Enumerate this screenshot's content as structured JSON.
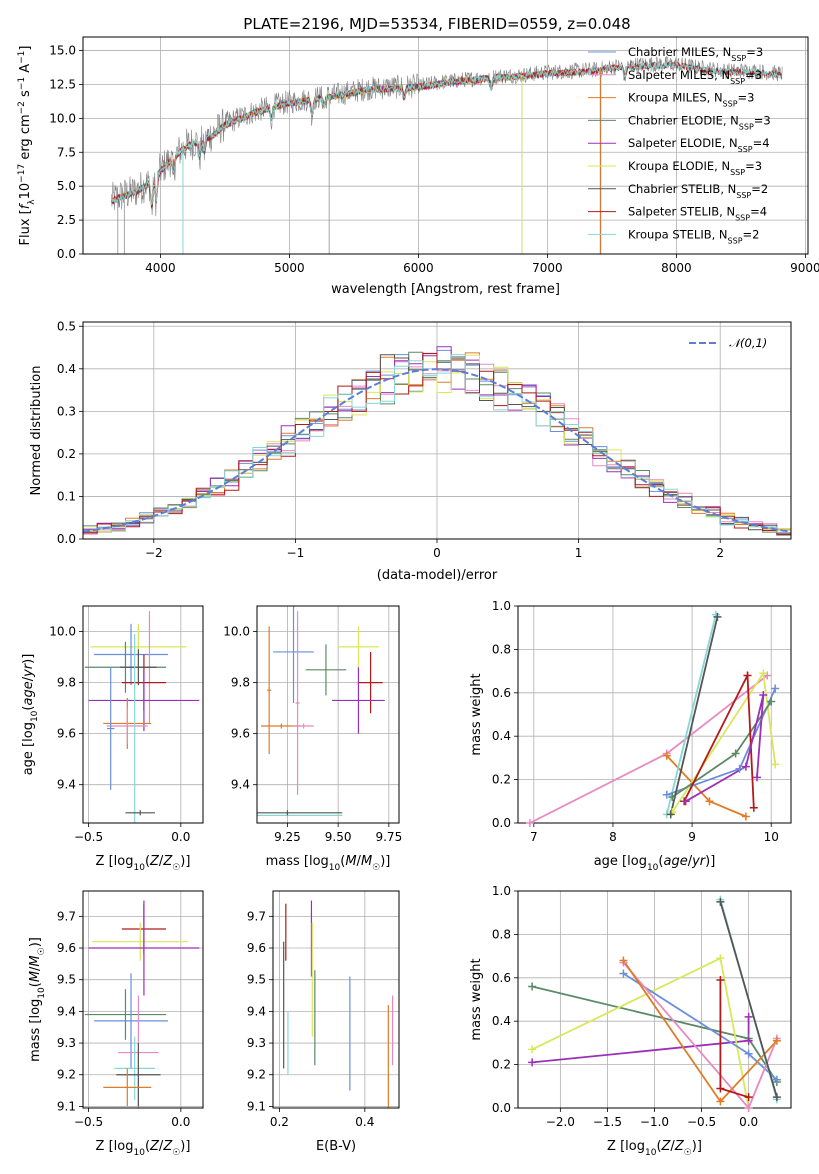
{
  "page_title": "PLATE=2196, MJD=53534, FIBERID=0559, z=0.048",
  "colors": {
    "Chabrier MILES": "#6a8fd8",
    "Salpeter MILES": "#e78ac3",
    "Kroupa MILES": "#e07b28",
    "Chabrier ELODIE": "#5c8a66",
    "Salpeter ELODIE": "#9b30b8",
    "Kroupa ELODIE": "#d8e85a",
    "Chabrier STELIB": "#555555",
    "Salpeter STELIB": "#b21a1a",
    "Kroupa STELIB": "#86d8d6",
    "data": "#808080",
    "normal": "#5b7fd6"
  },
  "chart_data": [
    {
      "id": "spectrum",
      "type": "line",
      "title": "PLATE=2196, MJD=53534, FIBERID=0559, z=0.048",
      "xlabel": "wavelength [Angstrom, rest frame]",
      "ylabel": "Flux [f_λ 10^-17 erg cm^-2 s^-1 A^-1]",
      "xlim": [
        3400,
        9020
      ],
      "ylim": [
        0,
        16
      ],
      "xticks": [
        4000,
        5000,
        6000,
        7000,
        8000,
        9000
      ],
      "yticks": [
        0.0,
        2.5,
        5.0,
        7.5,
        10.0,
        12.5,
        15.0
      ],
      "legend_position": "right",
      "legend": [
        {
          "label": "Chabrier MILES, N_SSP=3",
          "base": "Chabrier MILES, N",
          "sub": "SSP",
          "tail": "=3"
        },
        {
          "label": "Salpeter MILES, N_SSP=3",
          "base": "Salpeter MILES, N",
          "sub": "SSP",
          "tail": "=3"
        },
        {
          "label": "Kroupa MILES, N_SSP=3",
          "base": "Kroupa MILES, N",
          "sub": "SSP",
          "tail": "=3"
        },
        {
          "label": "Chabrier ELODIE, N_SSP=3",
          "base": "Chabrier ELODIE, N",
          "sub": "SSP",
          "tail": "=3"
        },
        {
          "label": "Salpeter ELODIE, N_SSP=4",
          "base": "Salpeter ELODIE, N",
          "sub": "SSP",
          "tail": "=4"
        },
        {
          "label": "Kroupa ELODIE, N_SSP=3",
          "base": "Kroupa ELODIE, N",
          "sub": "SSP",
          "tail": "=3"
        },
        {
          "label": "Chabrier STELIB, N_SSP=2",
          "base": "Chabrier STELIB, N",
          "sub": "SSP",
          "tail": "=2"
        },
        {
          "label": "Salpeter STELIB, N_SSP=4",
          "base": "Salpeter STELIB, N",
          "sub": "SSP",
          "tail": "=4"
        },
        {
          "label": "Kroupa STELIB, N_SSP=2",
          "base": "Kroupa STELIB, N",
          "sub": "SSP",
          "tail": "=2"
        }
      ],
      "continuum": {
        "x": [
          3620,
          3700,
          3800,
          3900,
          4000,
          4100,
          4200,
          4300,
          4400,
          4500,
          4600,
          4700,
          4800,
          4900,
          5000,
          5200,
          5400,
          5600,
          5800,
          6000,
          6200,
          6400,
          6600,
          6800,
          7000,
          7200,
          7400,
          7500,
          7600,
          7800,
          8000,
          8200,
          8400,
          8600,
          8800
        ],
        "y": [
          4.0,
          4.3,
          4.6,
          5.2,
          6.2,
          7.2,
          8.0,
          8.4,
          8.8,
          9.6,
          10.0,
          10.4,
          10.7,
          11.0,
          11.2,
          11.5,
          11.8,
          12.2,
          12.3,
          12.4,
          12.7,
          12.9,
          13.1,
          13.2,
          13.4,
          13.5,
          13.6,
          13.8,
          13.9,
          14.0,
          14.0,
          13.7,
          13.5,
          13.5,
          13.3
        ]
      }
    },
    {
      "id": "residuals",
      "type": "histogram",
      "xlabel": "(data-model)/error",
      "ylabel": "Normed distribution",
      "xlim": [
        -2.5,
        2.5
      ],
      "ylim": [
        0,
        0.51
      ],
      "xticks": [
        -2,
        -1,
        0,
        1,
        2
      ],
      "yticks": [
        0.0,
        0.1,
        0.2,
        0.3,
        0.4,
        0.5
      ],
      "bin_width": 0.1,
      "legend_position": "top-right",
      "legend": [
        {
          "label": "𝒩(0,1)"
        }
      ],
      "normal_curve": {
        "mean": 0,
        "sigma": 1
      },
      "series_order": [
        "Chabrier MILES",
        "Salpeter MILES",
        "Kroupa MILES",
        "Chabrier ELODIE",
        "Salpeter ELODIE",
        "Kroupa ELODIE",
        "Chabrier STELIB",
        "Salpeter STELIB",
        "Kroupa STELIB"
      ]
    },
    {
      "id": "age-vs-Z",
      "type": "errorbar",
      "xlabel": "Z [log10(Z/Z☉)]",
      "ylabel": "age [log10(age/yr)]",
      "xlim": [
        -0.53,
        0.12
      ],
      "ylim": [
        9.25,
        10.1
      ],
      "xticks": [
        -0.5,
        0.0
      ],
      "yticks": [
        9.4,
        9.6,
        9.8,
        10.0
      ],
      "points": [
        {
          "series": "Kroupa ELODIE",
          "x": -0.23,
          "y": 9.94,
          "xerr": 0.26,
          "yerr": 0.09
        },
        {
          "series": "Chabrier MILES",
          "x": -0.27,
          "y": 9.91,
          "xerr": 0.2,
          "yerr": 0.12
        },
        {
          "series": "Salpeter MILES",
          "x": -0.17,
          "y": 9.86,
          "xerr": 0.03,
          "yerr": 0.22
        },
        {
          "series": "Chabrier ELODIE",
          "x": -0.3,
          "y": 9.86,
          "xerr": 0.22,
          "yerr": 0.1
        },
        {
          "series": "Salpeter STELIB",
          "x": -0.2,
          "y": 9.8,
          "xerr": 0.12,
          "yerr": 0.11
        },
        {
          "series": "Chabrier STELIB",
          "x": -0.23,
          "y": 9.86,
          "xerr": 0.1,
          "yerr": 0.07
        },
        {
          "series": "Salpeter ELODIE",
          "x": -0.2,
          "y": 9.73,
          "xerr": 0.3,
          "yerr": 0.12
        },
        {
          "series": "Kroupa MILES",
          "x": -0.29,
          "y": 9.64,
          "xerr": 0.13,
          "yerr": 0.1
        },
        {
          "series": "Salpeter MILES",
          "x": -0.29,
          "y": 9.63,
          "xerr": 0.11,
          "yerr": 0.07
        },
        {
          "series": "Chabrier MILES",
          "x": -0.38,
          "y": 9.62,
          "xerr": 0.02,
          "yerr": 0.24
        },
        {
          "series": "Kroupa STELIB",
          "x": -0.25,
          "y": 9.29,
          "xerr": 0.01,
          "yerr": 0.7
        },
        {
          "series": "Chabrier STELIB",
          "x": -0.22,
          "y": 9.29,
          "xerr": 0.08,
          "yerr": 0.01
        }
      ]
    },
    {
      "id": "age-vs-mass",
      "type": "errorbar",
      "xlabel": "mass [log10(M/M☉)]",
      "ylabel": "",
      "xlim": [
        9.1,
        9.8
      ],
      "ylim": [
        9.25,
        10.1
      ],
      "xticks": [
        9.25,
        9.5,
        9.75
      ],
      "yticks": [
        9.4,
        9.6,
        9.8,
        10.0
      ],
      "points": [
        {
          "series": "Kroupa MILES",
          "x": 9.16,
          "y": 9.77,
          "xerr": 0.01,
          "yerr": 0.25
        },
        {
          "series": "Chabrier MILES",
          "x": 9.28,
          "y": 9.92,
          "xerr": 0.1,
          "yerr": 0.2
        },
        {
          "series": "Salpeter MILES",
          "x": 9.3,
          "y": 9.72,
          "xerr": 0.01,
          "yerr": 0.36
        },
        {
          "series": "Chabrier ELODIE",
          "x": 9.44,
          "y": 9.85,
          "xerr": 0.1,
          "yerr": 0.1
        },
        {
          "series": "Kroupa ELODIE",
          "x": 9.6,
          "y": 9.94,
          "xerr": 0.1,
          "yerr": 0.08
        },
        {
          "series": "Salpeter STELIB",
          "x": 9.66,
          "y": 9.8,
          "xerr": 0.06,
          "yerr": 0.12
        },
        {
          "series": "Salpeter ELODIE",
          "x": 9.6,
          "y": 9.73,
          "xerr": 0.13,
          "yerr": 0.13
        },
        {
          "series": "Kroupa MILES",
          "x": 9.22,
          "y": 9.63,
          "xerr": 0.1,
          "yerr": 0.01
        },
        {
          "series": "Salpeter MILES",
          "x": 9.33,
          "y": 9.63,
          "xerr": 0.05,
          "yerr": 0.01
        },
        {
          "series": "Kroupa STELIB",
          "x": 9.25,
          "y": 9.28,
          "xerr": 0.27,
          "yerr": 0.01
        },
        {
          "series": "Chabrier STELIB",
          "x": 9.25,
          "y": 9.29,
          "xerr": 0.27,
          "yerr": 0.01
        }
      ]
    },
    {
      "id": "mass-weight-vs-age",
      "type": "line",
      "xlabel": "age [log10(age/yr)]",
      "ylabel": "mass weight",
      "xlim": [
        6.8,
        10.25
      ],
      "ylim": [
        0,
        1.0
      ],
      "xticks": [
        7,
        8,
        9,
        10
      ],
      "yticks": [
        0.0,
        0.2,
        0.4,
        0.6,
        0.8,
        1.0
      ],
      "series": [
        {
          "name": "Salpeter MILES",
          "x": [
            6.95,
            8.68,
            9.95
          ],
          "y": [
            0.0,
            0.32,
            0.68
          ]
        },
        {
          "name": "Kroupa MILES",
          "x": [
            8.68,
            9.22,
            9.68
          ],
          "y": [
            0.31,
            0.1,
            0.03
          ]
        },
        {
          "name": "Kroupa STELIB",
          "x": [
            8.68,
            9.3
          ],
          "y": [
            0.04,
            0.96
          ]
        },
        {
          "name": "Chabrier MILES",
          "x": [
            8.68,
            9.6,
            10.05
          ],
          "y": [
            0.13,
            0.25,
            0.62
          ]
        },
        {
          "name": "Kroupa ELODIE",
          "x": [
            8.75,
            9.9,
            10.05
          ],
          "y": [
            0.05,
            0.69,
            0.27
          ]
        },
        {
          "name": "Chabrier ELODIE",
          "x": [
            8.75,
            9.55,
            10.0
          ],
          "y": [
            0.12,
            0.32,
            0.56
          ]
        },
        {
          "name": "Salpeter STELIB",
          "x": [
            8.9,
            9.7,
            9.78
          ],
          "y": [
            0.1,
            0.68,
            0.07
          ]
        },
        {
          "name": "Salpeter ELODIE",
          "x": [
            8.92,
            9.68,
            9.9,
            9.82
          ],
          "y": [
            0.1,
            0.26,
            0.59,
            0.21
          ]
        },
        {
          "name": "Chabrier STELIB",
          "x": [
            8.73,
            9.32
          ],
          "y": [
            0.04,
            0.95
          ]
        }
      ]
    },
    {
      "id": "mass-vs-Z",
      "type": "errorbar",
      "xlabel": "Z [log10(Z/Z☉)]",
      "ylabel": "mass [log10(M/M☉)]",
      "xlim": [
        -0.53,
        0.12
      ],
      "ylim": [
        9.095,
        9.78
      ],
      "xticks": [
        -0.5,
        0.0
      ],
      "yticks": [
        9.1,
        9.2,
        9.3,
        9.4,
        9.5,
        9.6,
        9.7
      ],
      "points": [
        {
          "series": "Salpeter STELIB",
          "x": -0.2,
          "y": 9.66,
          "xerr": 0.12,
          "yerr": 0.08
        },
        {
          "series": "Kroupa ELODIE",
          "x": -0.22,
          "y": 9.62,
          "xerr": 0.26,
          "yerr": 0.06
        },
        {
          "series": "Salpeter ELODIE",
          "x": -0.2,
          "y": 9.6,
          "xerr": 0.3,
          "yerr": 0.15
        },
        {
          "series": "Chabrier ELODIE",
          "x": -0.3,
          "y": 9.39,
          "xerr": 0.22,
          "yerr": 0.08
        },
        {
          "series": "Chabrier MILES",
          "x": -0.27,
          "y": 9.37,
          "xerr": 0.2,
          "yerr": 0.15
        },
        {
          "series": "Salpeter MILES",
          "x": -0.23,
          "y": 9.27,
          "xerr": 0.11,
          "yerr": 0.18
        },
        {
          "series": "Kroupa STELIB",
          "x": -0.25,
          "y": 9.22,
          "xerr": 0.11,
          "yerr": 0.1
        },
        {
          "series": "Chabrier STELIB",
          "x": -0.23,
          "y": 9.2,
          "xerr": 0.12,
          "yerr": 0.1
        },
        {
          "series": "Kroupa MILES",
          "x": -0.29,
          "y": 9.16,
          "xerr": 0.13,
          "yerr": 0.06
        }
      ]
    },
    {
      "id": "mass-vs-EBV",
      "type": "errorbar",
      "xlabel": "E(B-V)",
      "ylabel": "",
      "xlim": [
        0.185,
        0.48
      ],
      "ylim": [
        9.095,
        9.78
      ],
      "xticks": [
        0.2,
        0.4
      ],
      "yticks": [
        9.1,
        9.2,
        9.3,
        9.4,
        9.5,
        9.6,
        9.7
      ],
      "points": [
        {
          "series": "Chabrier STELIB",
          "x": 0.21,
          "y": 9.42,
          "xerr": 0.0,
          "yerr": 0.2
        },
        {
          "series": "Salpeter STELIB",
          "x": 0.215,
          "y": 9.65,
          "xerr": 0.0,
          "yerr": 0.09
        },
        {
          "series": "Kroupa STELIB",
          "x": 0.22,
          "y": 9.3,
          "xerr": 0.0,
          "yerr": 0.1
        },
        {
          "series": "Salpeter ELODIE",
          "x": 0.275,
          "y": 9.63,
          "xerr": 0.0,
          "yerr": 0.12
        },
        {
          "series": "Kroupa ELODIE",
          "x": 0.277,
          "y": 9.5,
          "xerr": 0.0,
          "yerr": 0.18
        },
        {
          "series": "Chabrier ELODIE",
          "x": 0.283,
          "y": 9.38,
          "xerr": 0.0,
          "yerr": 0.15
        },
        {
          "series": "Chabrier MILES",
          "x": 0.365,
          "y": 9.33,
          "xerr": 0.0,
          "yerr": 0.18
        },
        {
          "series": "Kroupa MILES",
          "x": 0.455,
          "y": 9.22,
          "xerr": 0.0,
          "yerr": 0.2
        },
        {
          "series": "Salpeter MILES",
          "x": 0.465,
          "y": 9.34,
          "xerr": 0.0,
          "yerr": 0.11
        }
      ]
    },
    {
      "id": "mass-weight-vs-Z",
      "type": "line",
      "xlabel": "Z [log10(Z/Z☉)]",
      "ylabel": "mass weight",
      "xlim": [
        -2.45,
        0.45
      ],
      "ylim": [
        0,
        1.0
      ],
      "xticks": [
        -2.0,
        -1.5,
        -1.0,
        -0.5,
        0.0
      ],
      "yticks": [
        0.0,
        0.2,
        0.4,
        0.6,
        0.8,
        1.0
      ],
      "series": [
        {
          "name": "Chabrier ELODIE",
          "x": [
            -2.3,
            0.0,
            0.3
          ],
          "y": [
            0.56,
            0.32,
            0.12
          ]
        },
        {
          "name": "Salpeter ELODIE",
          "x": [
            -2.3,
            0.0,
            0.0
          ],
          "y": [
            0.21,
            0.31,
            0.42
          ]
        },
        {
          "name": "Kroupa ELODIE",
          "x": [
            -2.3,
            -0.3,
            0.0
          ],
          "y": [
            0.27,
            0.69,
            0.0
          ]
        },
        {
          "name": "Chabrier MILES",
          "x": [
            -1.33,
            0.0,
            0.3
          ],
          "y": [
            0.62,
            0.25,
            0.13
          ]
        },
        {
          "name": "Salpeter MILES",
          "x": [
            -1.33,
            0.0,
            0.3
          ],
          "y": [
            0.67,
            0.0,
            0.32
          ]
        },
        {
          "name": "Kroupa MILES",
          "x": [
            -1.33,
            -0.3,
            0.3
          ],
          "y": [
            0.68,
            0.03,
            0.31
          ]
        },
        {
          "name": "Salpeter STELIB",
          "x": [
            -0.3,
            -0.3,
            0.0
          ],
          "y": [
            0.59,
            0.09,
            0.05
          ]
        },
        {
          "name": "Kroupa STELIB",
          "x": [
            -0.3,
            0.3
          ],
          "y": [
            0.96,
            0.04
          ]
        },
        {
          "name": "Chabrier STELIB",
          "x": [
            -0.3,
            0.3
          ],
          "y": [
            0.95,
            0.05
          ]
        }
      ]
    }
  ]
}
